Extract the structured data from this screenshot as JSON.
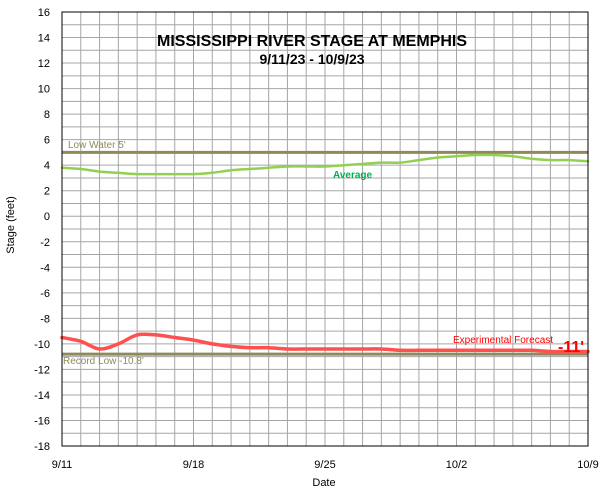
{
  "chart_data": {
    "type": "line",
    "title": "MISSISSIPPI RIVER STAGE AT MEMPHIS",
    "subtitle": "9/11/23 - 10/9/23",
    "xlabel": "Date",
    "ylabel": "Stage (feet)",
    "ylim": [
      -18,
      16
    ],
    "yticks": [
      16,
      14,
      12,
      10,
      8,
      6,
      4,
      2,
      0,
      -2,
      -4,
      -6,
      -8,
      -10,
      -12,
      -14,
      -16,
      -18
    ],
    "x_start": "9/11",
    "x_end": "10/9",
    "xticks": [
      "9/11",
      "9/18",
      "9/25",
      "10/2",
      "10/9"
    ],
    "grid": true,
    "reference_lines": [
      {
        "label": "Low Water 5'",
        "value": 5,
        "color": "#8f8a5a"
      },
      {
        "label": "Record Low  -10.8'",
        "value": -10.8,
        "color": "#8f8a5a"
      }
    ],
    "series": [
      {
        "name": "Average",
        "color": "#92d050",
        "x": [
          "9/11",
          "9/12",
          "9/13",
          "9/14",
          "9/15",
          "9/16",
          "9/17",
          "9/18",
          "9/19",
          "9/20",
          "9/21",
          "9/22",
          "9/23",
          "9/24",
          "9/25",
          "9/26",
          "9/27",
          "9/28",
          "9/29",
          "9/30",
          "10/1",
          "10/2",
          "10/3",
          "10/4",
          "10/5",
          "10/6",
          "10/7",
          "10/8",
          "10/9"
        ],
        "values": [
          3.8,
          3.7,
          3.5,
          3.4,
          3.3,
          3.3,
          3.3,
          3.3,
          3.4,
          3.6,
          3.7,
          3.8,
          3.9,
          3.9,
          3.9,
          4.0,
          4.1,
          4.2,
          4.2,
          4.4,
          4.6,
          4.7,
          4.8,
          4.8,
          4.7,
          4.5,
          4.4,
          4.4,
          4.3
        ]
      },
      {
        "name": "Experimental Forecast",
        "color": "#ff5050",
        "x": [
          "9/11",
          "9/12",
          "9/13",
          "9/14",
          "9/15",
          "9/16",
          "9/17",
          "9/18",
          "9/19",
          "9/20",
          "9/21",
          "9/22",
          "9/23",
          "9/24",
          "9/25",
          "9/26",
          "9/27",
          "9/28",
          "9/29",
          "9/30",
          "10/1",
          "10/2",
          "10/3",
          "10/4",
          "10/5",
          "10/6",
          "10/7",
          "10/8",
          "10/9"
        ],
        "values": [
          -9.5,
          -9.8,
          -10.4,
          -10.0,
          -9.3,
          -9.3,
          -9.5,
          -9.7,
          -10.0,
          -10.2,
          -10.3,
          -10.3,
          -10.4,
          -10.4,
          -10.4,
          -10.4,
          -10.4,
          -10.4,
          -10.5,
          -10.5,
          -10.5,
          -10.5,
          -10.5,
          -10.5,
          -10.5,
          -10.5,
          -10.6,
          -10.6,
          -10.6
        ]
      }
    ],
    "annotations": [
      {
        "text": "Average",
        "color": "#00b050"
      },
      {
        "text": "Experimental Forecast",
        "color": "#ff0000"
      },
      {
        "text": "-11'",
        "color": "#ff0000"
      }
    ]
  }
}
